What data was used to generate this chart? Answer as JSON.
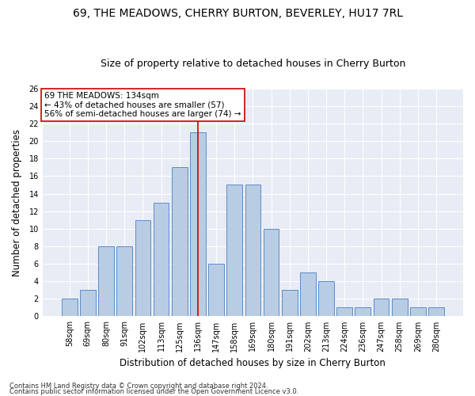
{
  "title": "69, THE MEADOWS, CHERRY BURTON, BEVERLEY, HU17 7RL",
  "subtitle": "Size of property relative to detached houses in Cherry Burton",
  "xlabel": "Distribution of detached houses by size in Cherry Burton",
  "ylabel": "Number of detached properties",
  "categories": [
    "58sqm",
    "69sqm",
    "80sqm",
    "91sqm",
    "102sqm",
    "113sqm",
    "125sqm",
    "136sqm",
    "147sqm",
    "158sqm",
    "169sqm",
    "180sqm",
    "191sqm",
    "202sqm",
    "213sqm",
    "224sqm",
    "236sqm",
    "247sqm",
    "258sqm",
    "269sqm",
    "280sqm"
  ],
  "values": [
    2,
    3,
    8,
    8,
    11,
    13,
    17,
    21,
    6,
    15,
    15,
    10,
    3,
    5,
    4,
    1,
    1,
    2,
    2,
    1,
    1
  ],
  "bar_color": "#b8cce4",
  "bar_edge_color": "#5b8dc8",
  "vline_x_index": 7,
  "vline_color": "#cc0000",
  "annotation_text": "69 THE MEADOWS: 134sqm\n← 43% of detached houses are smaller (57)\n56% of semi-detached houses are larger (74) →",
  "annotation_box_color": "#ffffff",
  "annotation_box_edge_color": "#cc0000",
  "ylim": [
    0,
    26
  ],
  "yticks": [
    0,
    2,
    4,
    6,
    8,
    10,
    12,
    14,
    16,
    18,
    20,
    22,
    24,
    26
  ],
  "footnote1": "Contains HM Land Registry data © Crown copyright and database right 2024.",
  "footnote2": "Contains public sector information licensed under the Open Government Licence v3.0.",
  "bg_color": "#e8ecf5",
  "title_fontsize": 10,
  "subtitle_fontsize": 9,
  "xlabel_fontsize": 8.5,
  "ylabel_fontsize": 8.5,
  "tick_fontsize": 7,
  "footnote_fontsize": 6,
  "annot_fontsize": 7.5
}
